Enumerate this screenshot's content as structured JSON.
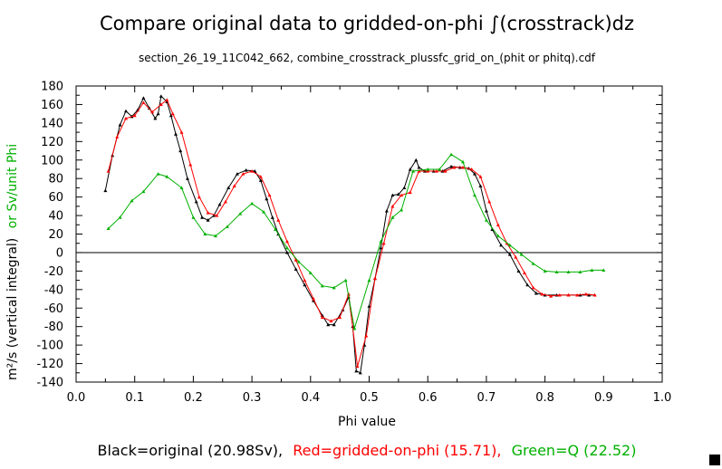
{
  "chart_data": {
    "type": "line",
    "title": "Compare original data to gridded-on-phi ∫(crosstrack)dz",
    "subtitle": "section_26_19_11C042_662, combine_crosstrack_plussfc_grid_on_(phit or phitq).cdf",
    "xlabel": "Phi value",
    "ylabel_black": "m²/s (vertical integral)",
    "ylabel_green": "or Sv/unit Phi",
    "xlim": [
      0.0,
      1.0
    ],
    "ylim": [
      -140,
      180
    ],
    "xticks": [
      "0.0",
      "0.1",
      "0.2",
      "0.3",
      "0.4",
      "0.5",
      "0.6",
      "0.7",
      "0.8",
      "0.9",
      "1.0"
    ],
    "yticks": [
      "180",
      "160",
      "140",
      "120",
      "100",
      "80",
      "60",
      "40",
      "20",
      "0",
      "-20",
      "-40",
      "-60",
      "-80",
      "-100",
      "-120",
      "-140"
    ],
    "legend": {
      "black": "Black=original (20.98Sv),",
      "red": "Red=gridded-on-phi (15.71),",
      "green": "Green=Q (22.52)"
    },
    "colors": {
      "black": "#000000",
      "red": "#ff0000",
      "green": "#00b000"
    },
    "series": [
      {
        "name": "original",
        "color": "#000000",
        "x": [
          0.05,
          0.062,
          0.075,
          0.085,
          0.095,
          0.105,
          0.115,
          0.125,
          0.135,
          0.14,
          0.145,
          0.155,
          0.162,
          0.17,
          0.178,
          0.19,
          0.205,
          0.215,
          0.225,
          0.235,
          0.245,
          0.26,
          0.275,
          0.29,
          0.305,
          0.315,
          0.325,
          0.335,
          0.345,
          0.36,
          0.375,
          0.39,
          0.405,
          0.42,
          0.43,
          0.44,
          0.455,
          0.465,
          0.472,
          0.478,
          0.485,
          0.492,
          0.5,
          0.51,
          0.52,
          0.53,
          0.54,
          0.55,
          0.56,
          0.57,
          0.58,
          0.585,
          0.595,
          0.61,
          0.625,
          0.64,
          0.655,
          0.67,
          0.68,
          0.69,
          0.7,
          0.71,
          0.725,
          0.74,
          0.755,
          0.77,
          0.785,
          0.8,
          0.82,
          0.84,
          0.86,
          0.875,
          0.885
        ],
        "values": [
          67,
          105,
          138,
          153,
          147,
          154,
          167,
          156,
          145,
          150,
          169,
          163,
          148,
          128,
          110,
          80,
          55,
          38,
          35,
          40,
          52,
          70,
          85,
          89,
          88,
          78,
          58,
          38,
          20,
          0,
          -18,
          -35,
          -52,
          -68,
          -78,
          -78,
          -62,
          -48,
          -80,
          -128,
          -130,
          -100,
          -58,
          -28,
          5,
          45,
          62,
          63,
          70,
          90,
          100,
          92,
          88,
          88,
          88,
          93,
          92,
          91,
          85,
          72,
          45,
          25,
          8,
          -2,
          -20,
          -35,
          -44,
          -46,
          -46,
          -46,
          -46,
          -46,
          -46
        ]
      },
      {
        "name": "gridded-on-phi",
        "color": "#ff0000",
        "x": [
          0.055,
          0.07,
          0.085,
          0.1,
          0.115,
          0.13,
          0.145,
          0.155,
          0.165,
          0.18,
          0.195,
          0.21,
          0.225,
          0.24,
          0.255,
          0.27,
          0.285,
          0.3,
          0.315,
          0.33,
          0.345,
          0.36,
          0.375,
          0.39,
          0.405,
          0.42,
          0.435,
          0.45,
          0.465,
          0.48,
          0.495,
          0.51,
          0.525,
          0.54,
          0.555,
          0.57,
          0.585,
          0.6,
          0.615,
          0.63,
          0.645,
          0.66,
          0.675,
          0.69,
          0.705,
          0.72,
          0.735,
          0.75,
          0.765,
          0.78,
          0.795,
          0.81,
          0.825,
          0.84,
          0.855,
          0.87,
          0.885
        ],
        "values": [
          88,
          125,
          145,
          148,
          162,
          152,
          160,
          165,
          150,
          130,
          95,
          60,
          43,
          40,
          55,
          72,
          85,
          88,
          82,
          62,
          35,
          12,
          -8,
          -30,
          -50,
          -70,
          -74,
          -70,
          -45,
          -123,
          -90,
          -28,
          10,
          50,
          62,
          65,
          88,
          88,
          88,
          88,
          92,
          92,
          90,
          82,
          55,
          30,
          10,
          -5,
          -22,
          -38,
          -45,
          -47,
          -46,
          -46,
          -46,
          -45,
          -46
        ]
      },
      {
        "name": "Q",
        "color": "#00b000",
        "x": [
          0.055,
          0.075,
          0.095,
          0.115,
          0.14,
          0.155,
          0.18,
          0.2,
          0.22,
          0.238,
          0.258,
          0.28,
          0.3,
          0.32,
          0.34,
          0.36,
          0.38,
          0.4,
          0.42,
          0.44,
          0.46,
          0.475,
          0.5,
          0.52,
          0.54,
          0.555,
          0.575,
          0.6,
          0.62,
          0.64,
          0.66,
          0.68,
          0.7,
          0.72,
          0.74,
          0.76,
          0.78,
          0.8,
          0.82,
          0.84,
          0.86,
          0.88,
          0.9
        ],
        "values": [
          26,
          38,
          56,
          66,
          85,
          82,
          70,
          38,
          20,
          18,
          28,
          42,
          53,
          44,
          25,
          5,
          -10,
          -22,
          -36,
          -38,
          -30,
          -82,
          -30,
          12,
          38,
          46,
          88,
          90,
          90,
          106,
          98,
          62,
          35,
          18,
          8,
          -2,
          -12,
          -20,
          -21,
          -21,
          -21,
          -19,
          -19
        ]
      }
    ]
  }
}
